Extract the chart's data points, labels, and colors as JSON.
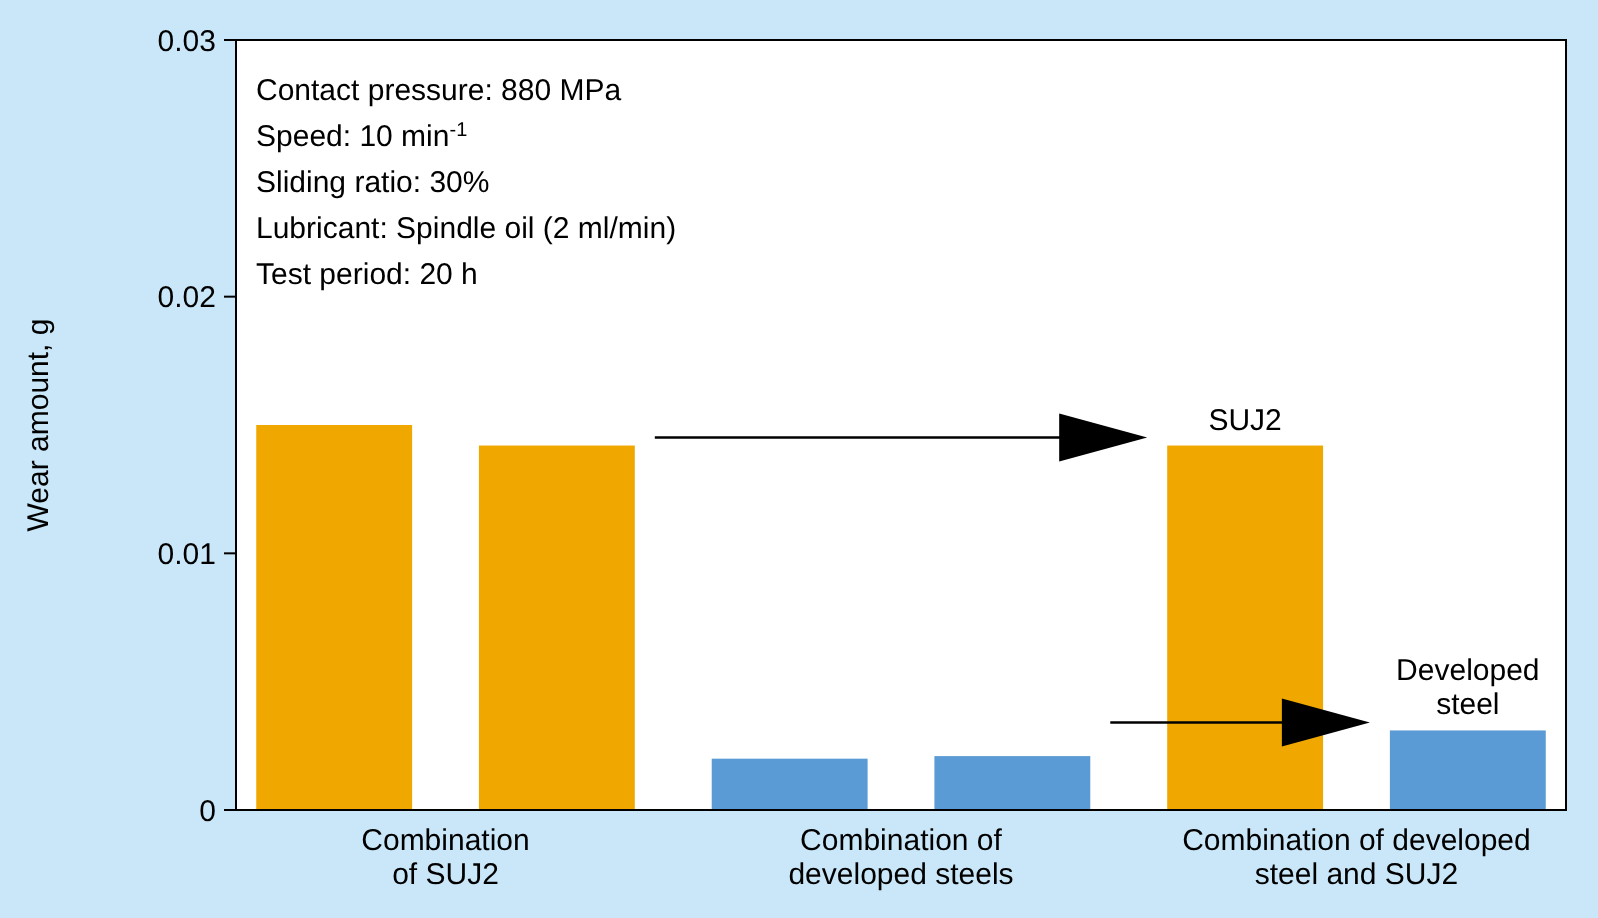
{
  "chart_data": {
    "type": "bar",
    "ylabel": "Wear amount, g",
    "categories": [
      "Combination of SUJ2",
      "Combination of developed steels",
      "Combination of developed steel and SUJ2"
    ],
    "series": [
      {
        "colors": [
          "#f0a800",
          "#5b9bd5",
          "#f0a800"
        ],
        "values": [
          0.015,
          0.002,
          0.0142
        ]
      },
      {
        "colors": [
          "#f0a800",
          "#5b9bd5",
          "#5b9bd5"
        ],
        "values": [
          0.0142,
          0.0021,
          0.0031
        ]
      }
    ],
    "ylim": [
      0,
      0.03
    ],
    "yticks": [
      0,
      0.01,
      0.02,
      0.03
    ],
    "grid": false,
    "annotations": [
      "Contact pressure: 880 MPa",
      "Speed: 10 min$^{-1}$",
      "Sliding ratio: 30%",
      "Lubricant: Spindle oil (2 ml/min)",
      "Test period: 20 h",
      "SUJ2",
      "Developed steel"
    ]
  }
}
